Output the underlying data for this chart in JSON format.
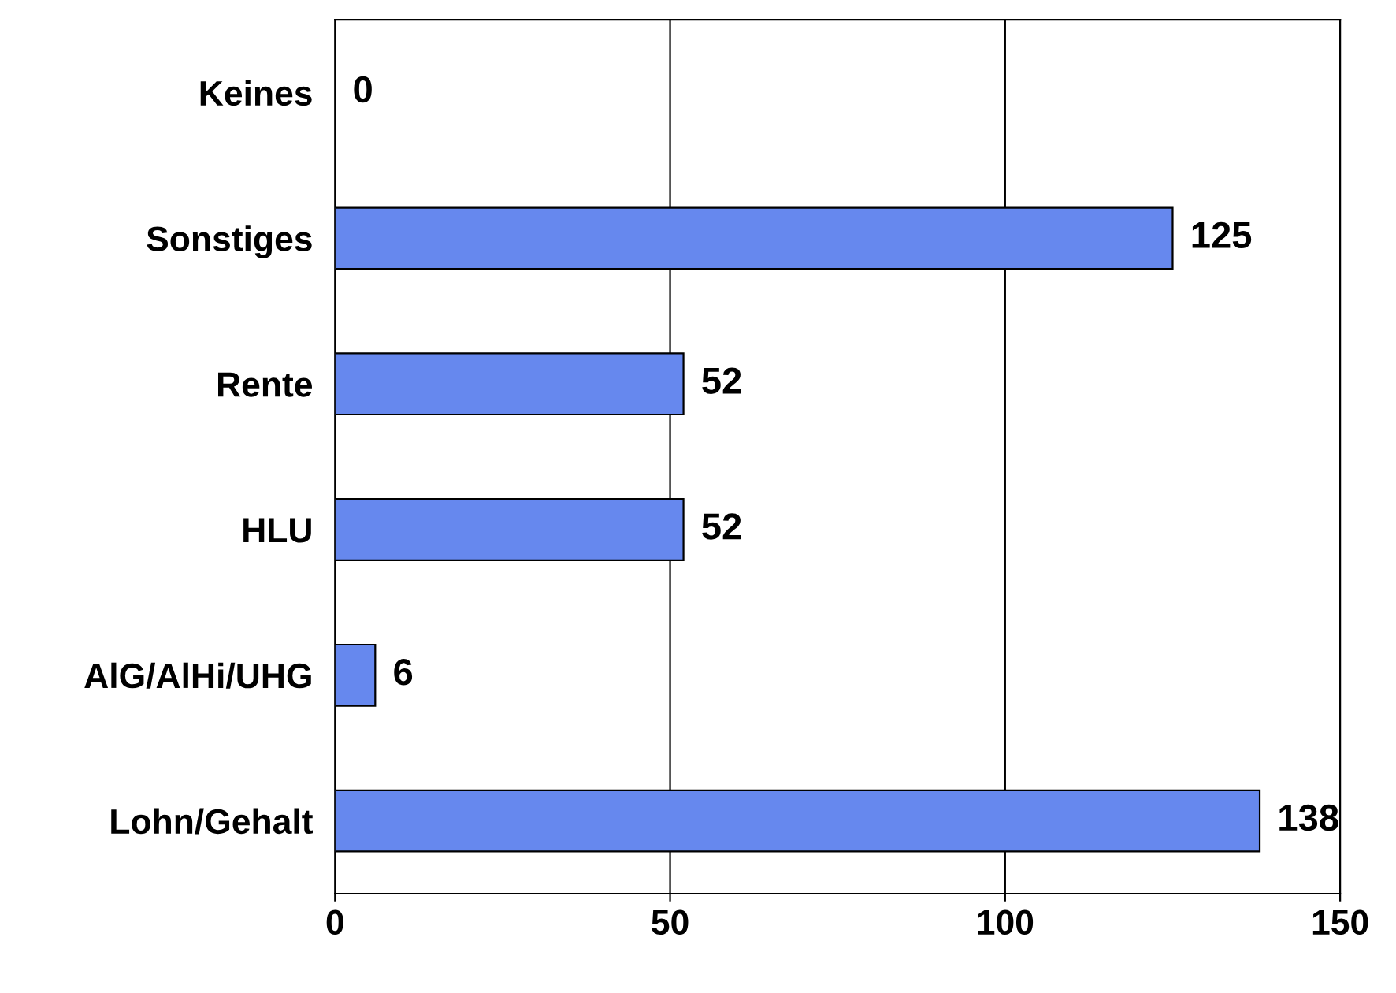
{
  "chart_data": {
    "type": "bar",
    "orientation": "horizontal",
    "categories": [
      "Keines",
      "Sonstiges",
      "Rente",
      "HLU",
      "AlG/AlHi/UHG",
      "Lohn/Gehalt"
    ],
    "values": [
      0,
      125,
      52,
      52,
      6,
      138
    ],
    "color": "#6688ee",
    "xlim": [
      0,
      150
    ],
    "xticks": [
      0,
      50,
      100,
      150
    ],
    "grid": "x",
    "data_labels": true
  }
}
